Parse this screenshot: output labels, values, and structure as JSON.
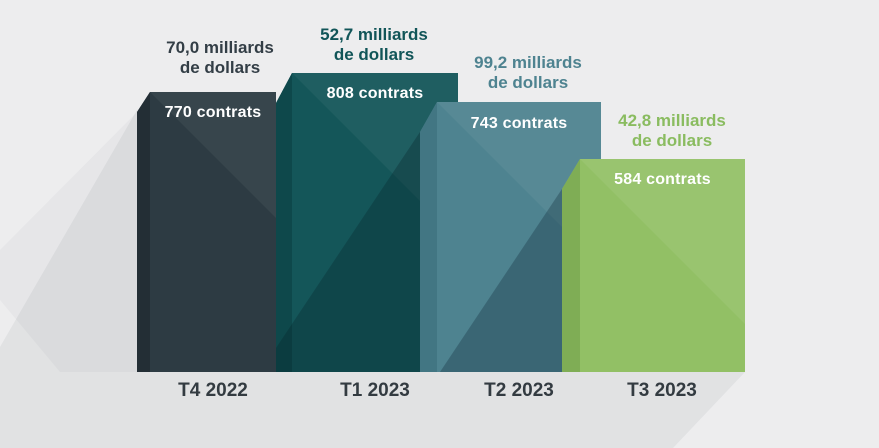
{
  "chart_data": {
    "type": "bar",
    "categories": [
      "T4 2022",
      "T1 2023",
      "T2 2023",
      "T3 2023"
    ],
    "series": [
      {
        "name": "contrats",
        "values": [
          770,
          808,
          743,
          584
        ]
      },
      {
        "name": "milliards de dollars",
        "values": [
          70.0,
          52.7,
          99.2,
          42.8
        ]
      }
    ],
    "title": "",
    "xlabel": "",
    "ylabel": "",
    "ylim": [
      0,
      820
    ],
    "grid": false,
    "legend_position": "none",
    "bar_colors": [
      "#2d3b43",
      "#145659",
      "#4e8390",
      "#92c065"
    ]
  },
  "bars": [
    {
      "category": "T4 2022",
      "amount_line1": "70,0 milliards",
      "amount_line2": "de dollars",
      "contracts_label": "770 contrats",
      "face_color": "#2d3b43",
      "label_color": "#333e46"
    },
    {
      "category": "T1 2023",
      "amount_line1": "52,7 milliards",
      "amount_line2": "de dollars",
      "contracts_label": "808 contrats",
      "face_color": "#145659",
      "label_color": "#115558"
    },
    {
      "category": "T2 2023",
      "amount_line1": "99,2 milliards",
      "amount_line2": "de dollars",
      "contracts_label": "743 contrats",
      "face_color": "#4e8390",
      "label_color": "#4e8390"
    },
    {
      "category": "T3 2023",
      "amount_line1": "42,8 milliards",
      "amount_line2": "de dollars",
      "contracts_label": "584 contrats",
      "face_color": "#92c065",
      "label_color": "#8abc60"
    }
  ],
  "colors": {
    "background": "#ededee",
    "background_shadow": "rgba(20,40,52,0.055)",
    "contracts_text": "#ffffff",
    "axis_text": "#333b41"
  }
}
